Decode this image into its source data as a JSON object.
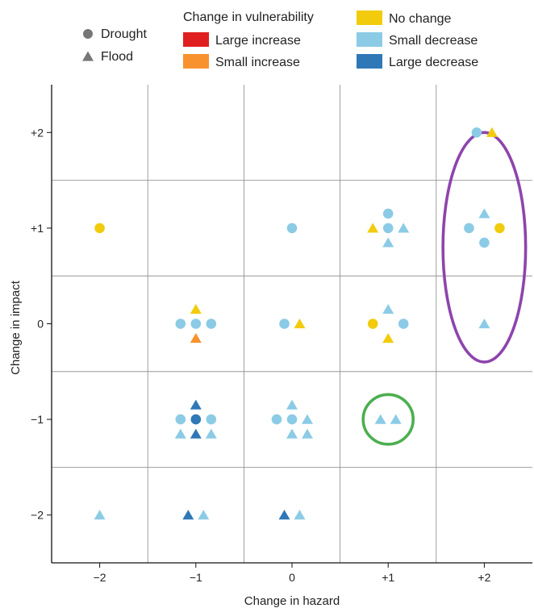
{
  "chart_data": {
    "type": "scatter",
    "xlabel": "Change in hazard",
    "ylabel": "Change in impact",
    "x_ticks": [
      -2,
      -1,
      0,
      1,
      2
    ],
    "y_ticks": [
      -2,
      -1,
      0,
      1,
      2
    ],
    "x_tick_labels": [
      "−2",
      "−1",
      "0",
      "+1",
      "+2"
    ],
    "y_tick_labels": [
      "−2",
      "−1",
      "0",
      "+1",
      "+2"
    ],
    "xlim": [
      -2.5,
      2.5
    ],
    "ylim": [
      -2.5,
      2.5
    ],
    "grid": true,
    "shape_legend": {
      "items": [
        {
          "shape": "circle",
          "label": "Drought"
        },
        {
          "shape": "triangle",
          "label": "Flood"
        }
      ]
    },
    "color_legend": {
      "title": "Change in vulnerability",
      "items": [
        {
          "key": "large_increase",
          "label": "Large increase",
          "color": "#e02020"
        },
        {
          "key": "small_increase",
          "label": "Small increase",
          "color": "#f7922e"
        },
        {
          "key": "no_change",
          "label": "No change",
          "color": "#f2cc0c"
        },
        {
          "key": "small_decrease",
          "label": "Small decrease",
          "color": "#8ccbe6"
        },
        {
          "key": "large_decrease",
          "label": "Large decrease",
          "color": "#2f78b7"
        }
      ]
    },
    "points": [
      {
        "x": -2,
        "y": 1,
        "dx": 0,
        "dy": 0,
        "shape": "circle",
        "vuln": "no_change"
      },
      {
        "x": -2,
        "y": -2,
        "dx": 0,
        "dy": 0,
        "shape": "triangle",
        "vuln": "small_decrease"
      },
      {
        "x": -1,
        "y": 0,
        "dx": 0,
        "dy": 1,
        "shape": "triangle",
        "vuln": "no_change"
      },
      {
        "x": -1,
        "y": 0,
        "dx": -1,
        "dy": 0,
        "shape": "circle",
        "vuln": "small_decrease"
      },
      {
        "x": -1,
        "y": 0,
        "dx": 0,
        "dy": 0,
        "shape": "circle",
        "vuln": "small_decrease"
      },
      {
        "x": -1,
        "y": 0,
        "dx": 1,
        "dy": 0,
        "shape": "circle",
        "vuln": "small_decrease"
      },
      {
        "x": -1,
        "y": 0,
        "dx": 0,
        "dy": -1,
        "shape": "triangle",
        "vuln": "small_increase"
      },
      {
        "x": -1,
        "y": -1,
        "dx": 0,
        "dy": 1,
        "shape": "triangle",
        "vuln": "large_decrease"
      },
      {
        "x": -1,
        "y": -1,
        "dx": -1,
        "dy": 0,
        "shape": "circle",
        "vuln": "small_decrease"
      },
      {
        "x": -1,
        "y": -1,
        "dx": 0,
        "dy": 0,
        "shape": "circle",
        "vuln": "large_decrease"
      },
      {
        "x": -1,
        "y": -1,
        "dx": 1,
        "dy": 0,
        "shape": "circle",
        "vuln": "small_decrease"
      },
      {
        "x": -1,
        "y": -1,
        "dx": -1,
        "dy": -1,
        "shape": "triangle",
        "vuln": "small_decrease"
      },
      {
        "x": -1,
        "y": -1,
        "dx": 0,
        "dy": -1,
        "shape": "triangle",
        "vuln": "large_decrease"
      },
      {
        "x": -1,
        "y": -1,
        "dx": 1,
        "dy": -1,
        "shape": "triangle",
        "vuln": "small_decrease"
      },
      {
        "x": -1,
        "y": -2,
        "dx": -0.5,
        "dy": 0,
        "shape": "triangle",
        "vuln": "large_decrease"
      },
      {
        "x": -1,
        "y": -2,
        "dx": 0.5,
        "dy": 0,
        "shape": "triangle",
        "vuln": "small_decrease"
      },
      {
        "x": 0,
        "y": 1,
        "dx": 0,
        "dy": 0,
        "shape": "circle",
        "vuln": "small_decrease"
      },
      {
        "x": 0,
        "y": 0,
        "dx": -0.5,
        "dy": 0,
        "shape": "circle",
        "vuln": "small_decrease"
      },
      {
        "x": 0,
        "y": 0,
        "dx": 0.5,
        "dy": 0,
        "shape": "triangle",
        "vuln": "no_change"
      },
      {
        "x": 0,
        "y": -1,
        "dx": 0,
        "dy": 1,
        "shape": "triangle",
        "vuln": "small_decrease"
      },
      {
        "x": 0,
        "y": -1,
        "dx": -1,
        "dy": 0,
        "shape": "circle",
        "vuln": "small_decrease"
      },
      {
        "x": 0,
        "y": -1,
        "dx": 0,
        "dy": 0,
        "shape": "circle",
        "vuln": "small_decrease"
      },
      {
        "x": 0,
        "y": -1,
        "dx": 1,
        "dy": 0,
        "shape": "triangle",
        "vuln": "small_decrease"
      },
      {
        "x": 0,
        "y": -1,
        "dx": 0,
        "dy": -1,
        "shape": "triangle",
        "vuln": "small_decrease"
      },
      {
        "x": 0,
        "y": -1,
        "dx": 1,
        "dy": -1,
        "shape": "triangle",
        "vuln": "small_decrease"
      },
      {
        "x": 0,
        "y": -2,
        "dx": -0.5,
        "dy": 0,
        "shape": "triangle",
        "vuln": "large_decrease"
      },
      {
        "x": 0,
        "y": -2,
        "dx": 0.5,
        "dy": 0,
        "shape": "triangle",
        "vuln": "small_decrease"
      },
      {
        "x": 1,
        "y": 1,
        "dx": 0,
        "dy": 1,
        "shape": "circle",
        "vuln": "small_decrease"
      },
      {
        "x": 1,
        "y": 1,
        "dx": -1,
        "dy": 0,
        "shape": "triangle",
        "vuln": "no_change"
      },
      {
        "x": 1,
        "y": 1,
        "dx": 0,
        "dy": 0,
        "shape": "circle",
        "vuln": "small_decrease"
      },
      {
        "x": 1,
        "y": 1,
        "dx": 1,
        "dy": 0,
        "shape": "triangle",
        "vuln": "small_decrease"
      },
      {
        "x": 1,
        "y": 1,
        "dx": 0,
        "dy": -1,
        "shape": "triangle",
        "vuln": "small_decrease"
      },
      {
        "x": 1,
        "y": 0,
        "dx": 0,
        "dy": 1,
        "shape": "triangle",
        "vuln": "small_decrease"
      },
      {
        "x": 1,
        "y": 0,
        "dx": -1,
        "dy": 0,
        "shape": "circle",
        "vuln": "no_change"
      },
      {
        "x": 1,
        "y": 0,
        "dx": 1,
        "dy": 0,
        "shape": "circle",
        "vuln": "small_decrease"
      },
      {
        "x": 1,
        "y": 0,
        "dx": 0,
        "dy": -1,
        "shape": "triangle",
        "vuln": "no_change"
      },
      {
        "x": 1,
        "y": -1,
        "dx": -0.5,
        "dy": 0,
        "shape": "triangle",
        "vuln": "small_decrease"
      },
      {
        "x": 1,
        "y": -1,
        "dx": 0.5,
        "dy": 0,
        "shape": "triangle",
        "vuln": "small_decrease"
      },
      {
        "x": 2,
        "y": 2,
        "dx": -0.5,
        "dy": 0,
        "shape": "circle",
        "vuln": "small_decrease"
      },
      {
        "x": 2,
        "y": 2,
        "dx": 0.5,
        "dy": 0,
        "shape": "triangle",
        "vuln": "no_change"
      },
      {
        "x": 2,
        "y": 1,
        "dx": 0,
        "dy": 1,
        "shape": "triangle",
        "vuln": "small_decrease"
      },
      {
        "x": 2,
        "y": 1,
        "dx": -1,
        "dy": 0,
        "shape": "circle",
        "vuln": "small_decrease"
      },
      {
        "x": 2,
        "y": 1,
        "dx": 1,
        "dy": 0,
        "shape": "circle",
        "vuln": "no_change"
      },
      {
        "x": 2,
        "y": 1,
        "dx": 0,
        "dy": -1,
        "shape": "circle",
        "vuln": "small_decrease"
      },
      {
        "x": 2,
        "y": 0,
        "dx": 0,
        "dy": 0,
        "shape": "triangle",
        "vuln": "small_decrease"
      }
    ],
    "annotations": [
      {
        "type": "ellipse",
        "cx": 2,
        "cy": 0.8,
        "rx": 0.43,
        "ry": 1.2,
        "color": "#8e44ad"
      },
      {
        "type": "ellipse",
        "cx": 1,
        "cy": -1,
        "rx": 0.26,
        "ry": 0.26,
        "color": "#4caf50"
      }
    ]
  }
}
